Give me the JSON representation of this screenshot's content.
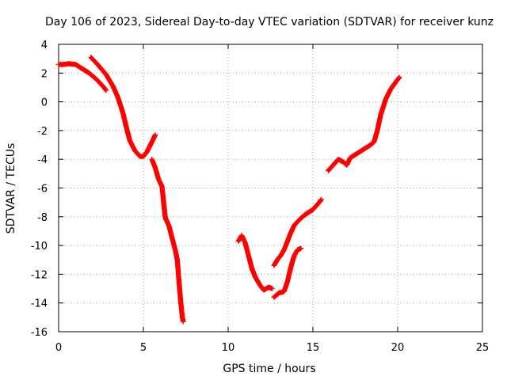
{
  "chart_data": {
    "type": "scatter",
    "title": "Day 106 of 2023, Sidereal Day-to-day VTEC variation (SDTVAR) for receiver kunz",
    "xlabel": "GPS time / hours",
    "ylabel": "SDTVAR / TECUs",
    "xlim": [
      0,
      25
    ],
    "ylim": [
      -16,
      4
    ],
    "xticks": [
      0,
      5,
      10,
      15,
      20,
      25
    ],
    "yticks": [
      -16,
      -14,
      -12,
      -10,
      -8,
      -6,
      -4,
      -2,
      0,
      2,
      4
    ],
    "grid": true,
    "marker": "+",
    "color": "#ff0000",
    "segments": [
      [
        [
          0.0,
          2.6
        ],
        [
          0.3,
          2.6
        ],
        [
          0.6,
          2.65
        ],
        [
          1.0,
          2.6
        ],
        [
          1.4,
          2.3
        ],
        [
          1.8,
          2.0
        ],
        [
          2.2,
          1.6
        ],
        [
          2.6,
          1.1
        ],
        [
          2.8,
          0.8
        ]
      ],
      [
        [
          1.9,
          3.1
        ],
        [
          2.3,
          2.6
        ],
        [
          2.8,
          1.9
        ],
        [
          3.2,
          1.1
        ],
        [
          3.5,
          0.3
        ],
        [
          3.8,
          -0.8
        ],
        [
          4.0,
          -1.8
        ],
        [
          4.2,
          -2.7
        ],
        [
          4.5,
          -3.4
        ],
        [
          4.8,
          -3.8
        ],
        [
          5.0,
          -3.8
        ],
        [
          5.2,
          -3.5
        ],
        [
          5.5,
          -2.8
        ],
        [
          5.7,
          -2.3
        ]
      ],
      [
        [
          5.5,
          -4.0
        ],
        [
          5.7,
          -4.6
        ],
        [
          5.9,
          -5.4
        ],
        [
          6.1,
          -5.9
        ],
        [
          6.2,
          -7.1
        ],
        [
          6.3,
          -8.1
        ],
        [
          6.5,
          -8.6
        ],
        [
          6.7,
          -9.5
        ],
        [
          6.9,
          -10.4
        ],
        [
          7.0,
          -11.0
        ],
        [
          7.1,
          -12.5
        ],
        [
          7.2,
          -13.9
        ],
        [
          7.3,
          -15.0
        ],
        [
          7.35,
          -15.3
        ]
      ],
      [
        [
          10.6,
          -9.7
        ],
        [
          10.8,
          -9.3
        ],
        [
          11.0,
          -9.8
        ],
        [
          11.2,
          -10.7
        ],
        [
          11.4,
          -11.6
        ],
        [
          11.6,
          -12.2
        ],
        [
          11.9,
          -12.8
        ],
        [
          12.1,
          -13.1
        ],
        [
          12.4,
          -12.9
        ],
        [
          12.6,
          -13.0
        ]
      ],
      [
        [
          12.7,
          -11.4
        ],
        [
          12.9,
          -11.0
        ],
        [
          13.1,
          -10.7
        ],
        [
          13.3,
          -10.3
        ],
        [
          13.5,
          -9.7
        ],
        [
          13.7,
          -9.1
        ],
        [
          13.9,
          -8.6
        ],
        [
          14.2,
          -8.2
        ],
        [
          14.6,
          -7.8
        ],
        [
          15.0,
          -7.5
        ],
        [
          15.3,
          -7.1
        ],
        [
          15.5,
          -6.8
        ]
      ],
      [
        [
          12.7,
          -13.6
        ],
        [
          13.0,
          -13.3
        ],
        [
          13.3,
          -13.2
        ],
        [
          13.5,
          -12.5
        ],
        [
          13.7,
          -11.5
        ],
        [
          13.9,
          -10.7
        ],
        [
          14.1,
          -10.3
        ],
        [
          14.3,
          -10.2
        ]
      ],
      [
        [
          15.9,
          -4.8
        ],
        [
          16.2,
          -4.4
        ],
        [
          16.5,
          -4.0
        ],
        [
          16.8,
          -4.2
        ],
        [
          17.0,
          -4.4
        ],
        [
          17.2,
          -3.9
        ],
        [
          17.6,
          -3.6
        ],
        [
          18.0,
          -3.3
        ],
        [
          18.4,
          -3.0
        ],
        [
          18.6,
          -2.8
        ],
        [
          18.8,
          -2.0
        ],
        [
          19.0,
          -0.9
        ],
        [
          19.3,
          0.2
        ],
        [
          19.6,
          0.9
        ],
        [
          19.9,
          1.4
        ],
        [
          20.1,
          1.7
        ]
      ]
    ]
  }
}
